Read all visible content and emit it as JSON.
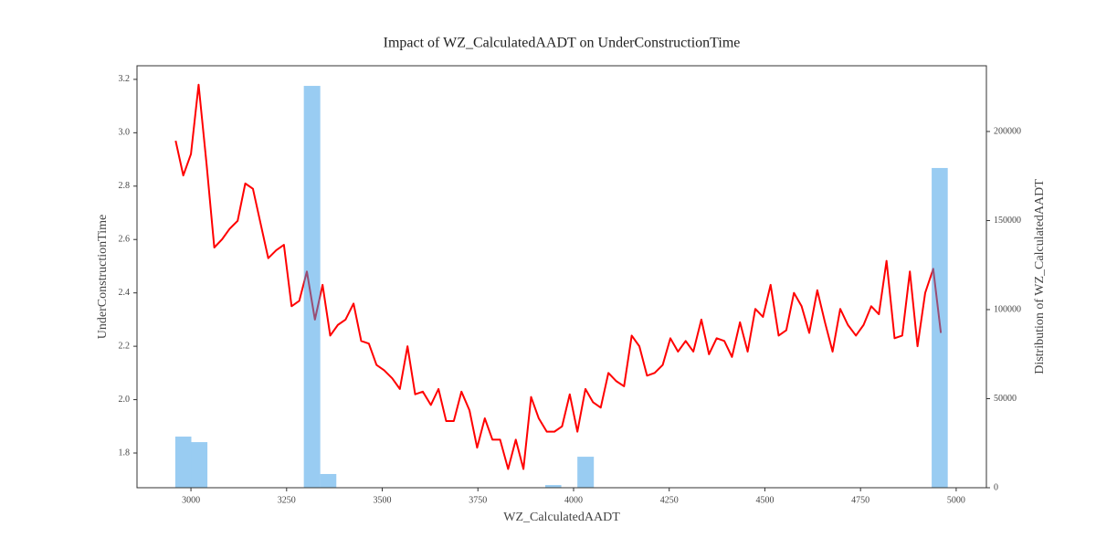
{
  "chart_data": {
    "type": "line",
    "title": "Impact of WZ_CalculatedAADT on UnderConstructionTime",
    "xlabel": "WZ_CalculatedAADT",
    "ylabel": "UnderConstructionTime",
    "y2label": "Distribution of WZ_CalculatedAADT",
    "color": "#ff0000",
    "x": [
      2960,
      2980,
      3000,
      3020,
      3041,
      3061,
      3081,
      3101,
      3122,
      3142,
      3162,
      3182,
      3202,
      3223,
      3243,
      3263,
      3283,
      3303,
      3324,
      3344,
      3364,
      3384,
      3404,
      3425,
      3445,
      3465,
      3485,
      3505,
      3526,
      3546,
      3566,
      3586,
      3606,
      3627,
      3647,
      3667,
      3687,
      3707,
      3728,
      3748,
      3768,
      3788,
      3808,
      3829,
      3849,
      3869,
      3889,
      3909,
      3930,
      3950,
      3970,
      3990,
      4010,
      4031,
      4051,
      4071,
      4091,
      4111,
      4132,
      4152,
      4172,
      4192,
      4212,
      4233,
      4253,
      4273,
      4293,
      4313,
      4334,
      4354,
      4374,
      4394,
      4414,
      4435,
      4455,
      4475,
      4495,
      4515,
      4536,
      4556,
      4576,
      4596,
      4616,
      4637,
      4657,
      4677,
      4697,
      4717,
      4738,
      4758,
      4778,
      4798,
      4818,
      4839,
      4859,
      4879,
      4899,
      4919,
      4940,
      4960
    ],
    "values": [
      2.97,
      2.84,
      2.92,
      3.18,
      2.88,
      2.57,
      2.6,
      2.64,
      2.67,
      2.81,
      2.79,
      2.66,
      2.53,
      2.56,
      2.58,
      2.35,
      2.37,
      2.48,
      2.3,
      2.43,
      2.24,
      2.28,
      2.3,
      2.36,
      2.22,
      2.21,
      2.13,
      2.11,
      2.08,
      2.04,
      2.2,
      2.02,
      2.03,
      1.98,
      2.04,
      1.92,
      1.92,
      2.03,
      1.96,
      1.82,
      1.93,
      1.85,
      1.85,
      1.74,
      1.85,
      1.74,
      2.01,
      1.93,
      1.88,
      1.88,
      1.9,
      2.02,
      1.88,
      2.04,
      1.99,
      1.97,
      2.1,
      2.07,
      2.05,
      2.24,
      2.2,
      2.09,
      2.1,
      2.13,
      2.23,
      2.18,
      2.22,
      2.18,
      2.3,
      2.17,
      2.23,
      2.22,
      2.16,
      2.29,
      2.18,
      2.34,
      2.31,
      2.43,
      2.24,
      2.26,
      2.4,
      2.35,
      2.25,
      2.41,
      2.29,
      2.18,
      2.34,
      2.28,
      2.24,
      2.28,
      2.35,
      2.32,
      2.52,
      2.23,
      2.24,
      2.48,
      2.2,
      2.4,
      2.49,
      2.25
    ],
    "xlim": [
      2859,
      5079
    ],
    "xticks": [
      3000,
      3250,
      3500,
      3750,
      4000,
      4250,
      4500,
      4750,
      5000
    ],
    "ylim": [
      1.67,
      3.251
    ],
    "yticks": [
      1.8,
      {
        "value": 2,
        "label": "2.0"
      },
      2.2,
      2.4,
      2.6,
      2.8,
      {
        "value": 3,
        "label": "3.0"
      },
      3.2
    ],
    "y2lim": [
      0,
      236900
    ],
    "y2ticks": [
      0,
      50000,
      100000,
      150000,
      200000
    ],
    "histogram": {
      "type": "histogram",
      "axis": "y2",
      "color": "#3399e6",
      "alpha": 0.5,
      "bins": [
        2959,
        3001,
        3043,
        3085,
        3127,
        3169,
        3211,
        3253,
        3295,
        3338,
        3380,
        3422,
        3464,
        3506,
        3548,
        3590,
        3632,
        3674,
        3716,
        3758,
        3800,
        3842,
        3884,
        3926,
        3968,
        4010,
        4053,
        4095,
        4137,
        4179,
        4221,
        4263,
        4305,
        4347,
        4389,
        4431,
        4473,
        4515,
        4557,
        4599,
        4641,
        4683,
        4726,
        4768,
        4810,
        4852,
        4894,
        4936,
        4978
      ],
      "counts": [
        28700,
        25600,
        0,
        0,
        0,
        0,
        0,
        0,
        225600,
        7700,
        0,
        0,
        0,
        0,
        0,
        0,
        0,
        0,
        0,
        0,
        0,
        0,
        0,
        1500,
        0,
        17400,
        0,
        0,
        0,
        0,
        0,
        0,
        0,
        0,
        0,
        0,
        0,
        0,
        0,
        0,
        0,
        0,
        0,
        0,
        0,
        0,
        0,
        179500
      ]
    }
  }
}
